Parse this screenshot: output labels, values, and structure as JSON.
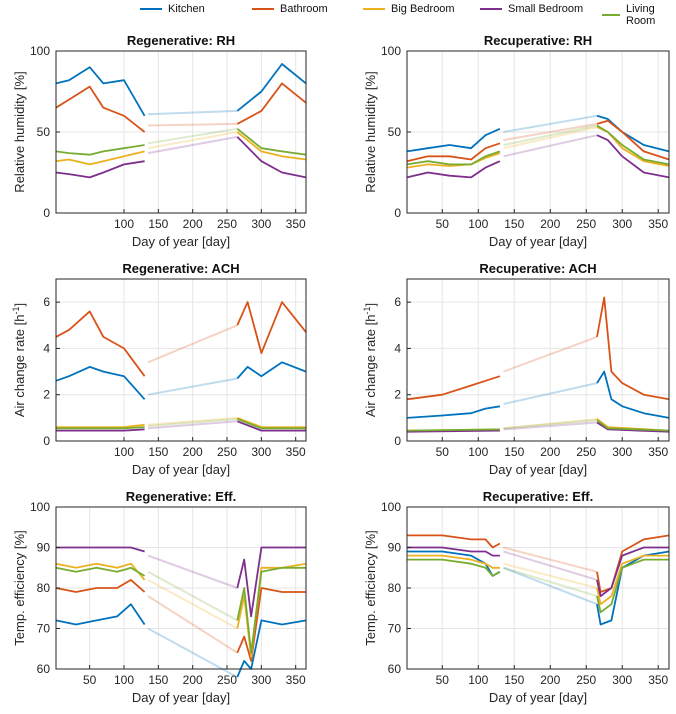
{
  "legend": [
    {
      "name": "Kitchen",
      "color": "#0072BD"
    },
    {
      "name": "Bathroom",
      "color": "#D95319"
    },
    {
      "name": "Big Bedroom",
      "color": "#EDB120"
    },
    {
      "name": "Small Bedroom",
      "color": "#7E2F8E"
    },
    {
      "name": "Living Room",
      "color": "#77AC30"
    }
  ],
  "chart_data": [
    {
      "type": "line",
      "title": "Regenerative: RH",
      "xlabel": "Day of year [day]",
      "ylabel": "Relative humidity [%]",
      "xlim": [
        1,
        365
      ],
      "ylim": [
        0,
        100
      ],
      "xticks": [
        100,
        150,
        200,
        250,
        300,
        350
      ],
      "xticklabels": [
        "100",
        "150",
        "200",
        "250",
        "300",
        "350"
      ],
      "yticks": [
        0,
        50,
        100
      ],
      "grid": true,
      "series": [
        {
          "name": "Kitchen",
          "x": [
            1,
            20,
            50,
            70,
            100,
            130,
            135,
            265,
            300,
            330,
            365
          ],
          "y": [
            80,
            82,
            90,
            80,
            82,
            60,
            61,
            63,
            75,
            92,
            80
          ]
        },
        {
          "name": "Bathroom",
          "x": [
            1,
            20,
            50,
            70,
            100,
            130,
            135,
            265,
            300,
            330,
            365
          ],
          "y": [
            65,
            70,
            78,
            65,
            60,
            50,
            54,
            55,
            63,
            80,
            68
          ]
        },
        {
          "name": "Big Bedroom",
          "x": [
            1,
            20,
            50,
            70,
            100,
            130,
            135,
            265,
            300,
            330,
            365
          ],
          "y": [
            32,
            33,
            30,
            32,
            35,
            38,
            40,
            50,
            38,
            35,
            33
          ]
        },
        {
          "name": "Small Bedroom",
          "x": [
            1,
            20,
            50,
            70,
            100,
            130,
            135,
            265,
            300,
            330,
            365
          ],
          "y": [
            25,
            24,
            22,
            25,
            30,
            32,
            37,
            47,
            32,
            25,
            22
          ]
        },
        {
          "name": "Living Room",
          "x": [
            1,
            20,
            50,
            70,
            100,
            130,
            135,
            265,
            300,
            330,
            365
          ],
          "y": [
            38,
            37,
            36,
            38,
            40,
            42,
            43,
            52,
            40,
            38,
            36
          ]
        }
      ]
    },
    {
      "type": "line",
      "title": "Recuperative: RH",
      "xlabel": "Day of year [day]",
      "ylabel": "Relative humidity [%]",
      "xlim": [
        1,
        365
      ],
      "ylim": [
        0,
        100
      ],
      "xticks": [
        50,
        100,
        150,
        200,
        250,
        300,
        350
      ],
      "xticklabels": [
        "50",
        "100",
        "150",
        "200",
        "250",
        "300",
        "350"
      ],
      "yticks": [
        0,
        50,
        100
      ],
      "grid": true,
      "series": [
        {
          "name": "Kitchen",
          "x": [
            1,
            30,
            60,
            90,
            110,
            130,
            135,
            265,
            280,
            300,
            330,
            365
          ],
          "y": [
            38,
            40,
            42,
            40,
            48,
            52,
            50,
            60,
            58,
            50,
            42,
            38
          ]
        },
        {
          "name": "Bathroom",
          "x": [
            1,
            30,
            60,
            90,
            110,
            130,
            135,
            265,
            280,
            300,
            330,
            365
          ],
          "y": [
            32,
            35,
            35,
            33,
            40,
            43,
            45,
            55,
            57,
            50,
            38,
            33
          ]
        },
        {
          "name": "Big Bedroom",
          "x": [
            1,
            30,
            60,
            90,
            110,
            130,
            135,
            265,
            280,
            300,
            330,
            365
          ],
          "y": [
            28,
            30,
            29,
            30,
            34,
            37,
            40,
            53,
            50,
            40,
            32,
            29
          ]
        },
        {
          "name": "Small Bedroom",
          "x": [
            1,
            30,
            60,
            90,
            110,
            130,
            135,
            265,
            280,
            300,
            330,
            365
          ],
          "y": [
            22,
            25,
            23,
            22,
            28,
            32,
            35,
            48,
            45,
            35,
            25,
            22
          ]
        },
        {
          "name": "Living Room",
          "x": [
            1,
            30,
            60,
            90,
            110,
            130,
            135,
            265,
            280,
            300,
            330,
            365
          ],
          "y": [
            30,
            32,
            30,
            30,
            35,
            38,
            42,
            54,
            50,
            42,
            33,
            30
          ]
        }
      ]
    },
    {
      "type": "line",
      "title": "Regenerative: ACH",
      "xlabel": "Day of year [day]",
      "ylabel": "Air change rate [h",
      "ylabel_sup": "-1",
      "ylabel_end": "]",
      "xlim": [
        1,
        365
      ],
      "ylim": [
        0,
        7
      ],
      "xticks": [
        100,
        150,
        200,
        250,
        300,
        350
      ],
      "xticklabels": [
        "100",
        "150",
        "200",
        "250",
        "300",
        "350"
      ],
      "yticks": [
        0,
        2,
        4,
        6
      ],
      "grid": true,
      "series": [
        {
          "name": "Kitchen",
          "x": [
            1,
            20,
            50,
            70,
            100,
            130,
            135,
            265,
            280,
            300,
            330,
            365
          ],
          "y": [
            2.6,
            2.8,
            3.2,
            3.0,
            2.8,
            1.8,
            2.0,
            2.7,
            3.2,
            2.8,
            3.4,
            3.0
          ]
        },
        {
          "name": "Bathroom",
          "x": [
            1,
            20,
            50,
            70,
            100,
            130,
            135,
            265,
            280,
            300,
            330,
            365
          ],
          "y": [
            4.5,
            4.8,
            5.6,
            4.5,
            4.0,
            2.8,
            3.4,
            5.0,
            6.0,
            3.8,
            6.0,
            4.7
          ]
        },
        {
          "name": "Big Bedroom",
          "x": [
            1,
            50,
            100,
            130,
            135,
            265,
            300,
            365
          ],
          "y": [
            0.6,
            0.6,
            0.6,
            0.7,
            0.7,
            1.0,
            0.6,
            0.6
          ]
        },
        {
          "name": "Small Bedroom",
          "x": [
            1,
            50,
            100,
            130,
            135,
            265,
            300,
            365
          ],
          "y": [
            0.45,
            0.45,
            0.45,
            0.5,
            0.55,
            0.85,
            0.45,
            0.45
          ]
        },
        {
          "name": "Living Room",
          "x": [
            1,
            50,
            100,
            130,
            135,
            265,
            300,
            365
          ],
          "y": [
            0.55,
            0.55,
            0.55,
            0.6,
            0.65,
            0.95,
            0.55,
            0.55
          ]
        }
      ]
    },
    {
      "type": "line",
      "title": "Recuperative: ACH",
      "xlabel": "Day of year [day]",
      "ylabel": "Air change rate [h",
      "ylabel_sup": "-1",
      "ylabel_end": "]",
      "xlim": [
        1,
        365
      ],
      "ylim": [
        0,
        7
      ],
      "xticks": [
        50,
        100,
        150,
        200,
        250,
        300,
        350
      ],
      "xticklabels": [
        "50",
        "100",
        "150",
        "200",
        "250",
        "300",
        "350"
      ],
      "yticks": [
        0,
        2,
        4,
        6
      ],
      "grid": true,
      "series": [
        {
          "name": "Kitchen",
          "x": [
            1,
            50,
            90,
            110,
            130,
            135,
            265,
            275,
            285,
            300,
            330,
            365
          ],
          "y": [
            1.0,
            1.1,
            1.2,
            1.4,
            1.5,
            1.6,
            2.5,
            3.0,
            1.8,
            1.5,
            1.2,
            1.0
          ]
        },
        {
          "name": "Bathroom",
          "x": [
            1,
            50,
            90,
            110,
            130,
            135,
            265,
            275,
            285,
            300,
            330,
            365
          ],
          "y": [
            1.8,
            2.0,
            2.4,
            2.6,
            2.8,
            3.0,
            4.5,
            6.2,
            3.0,
            2.5,
            2.0,
            1.8
          ]
        },
        {
          "name": "Big Bedroom",
          "x": [
            1,
            130,
            135,
            265,
            280,
            365
          ],
          "y": [
            0.45,
            0.5,
            0.55,
            0.95,
            0.6,
            0.45
          ]
        },
        {
          "name": "Small Bedroom",
          "x": [
            1,
            130,
            135,
            265,
            280,
            365
          ],
          "y": [
            0.4,
            0.45,
            0.5,
            0.8,
            0.5,
            0.4
          ]
        },
        {
          "name": "Living Room",
          "x": [
            1,
            130,
            135,
            265,
            280,
            365
          ],
          "y": [
            0.45,
            0.5,
            0.55,
            0.9,
            0.55,
            0.45
          ]
        }
      ]
    },
    {
      "type": "line",
      "title": "Regenerative: Eff.",
      "xlabel": "Day of year [day]",
      "ylabel": "Temp. efficiency [%]",
      "xlim": [
        1,
        365
      ],
      "ylim": [
        60,
        100
      ],
      "xticks": [
        50,
        100,
        150,
        200,
        250,
        300,
        350
      ],
      "xticklabels": [
        "50",
        "100",
        "150",
        "200",
        "250",
        "300",
        "350"
      ],
      "yticks": [
        60,
        70,
        80,
        90,
        100
      ],
      "grid": true,
      "series": [
        {
          "name": "Kitchen",
          "x": [
            1,
            30,
            60,
            90,
            110,
            130,
            135,
            265,
            275,
            285,
            300,
            330,
            365
          ],
          "y": [
            72,
            71,
            72,
            73,
            76,
            71,
            70,
            58,
            62,
            60,
            72,
            71,
            72
          ]
        },
        {
          "name": "Bathroom",
          "x": [
            1,
            30,
            60,
            90,
            110,
            130,
            135,
            265,
            275,
            285,
            300,
            330,
            365
          ],
          "y": [
            80,
            79,
            80,
            80,
            82,
            79,
            78,
            64,
            68,
            62,
            80,
            79,
            79
          ]
        },
        {
          "name": "Big Bedroom",
          "x": [
            1,
            30,
            60,
            90,
            110,
            130,
            135,
            265,
            275,
            285,
            300,
            330,
            365
          ],
          "y": [
            86,
            85,
            86,
            85,
            86,
            82,
            82,
            70,
            78,
            63,
            85,
            85,
            86
          ]
        },
        {
          "name": "Small Bedroom",
          "x": [
            1,
            30,
            60,
            90,
            110,
            130,
            135,
            265,
            275,
            285,
            300,
            330,
            365
          ],
          "y": [
            90,
            90,
            90,
            90,
            90,
            89,
            88,
            80,
            87,
            73,
            90,
            90,
            90
          ]
        },
        {
          "name": "Living Room",
          "x": [
            1,
            30,
            60,
            90,
            110,
            130,
            135,
            265,
            275,
            285,
            300,
            330,
            365
          ],
          "y": [
            85,
            84,
            85,
            84,
            85,
            83,
            84,
            72,
            80,
            64,
            84,
            85,
            85
          ]
        }
      ]
    },
    {
      "type": "line",
      "title": "Recuperative: Eff.",
      "xlabel": "Day of year [day]",
      "ylabel": "Temp. efficiency [%]",
      "xlim": [
        1,
        365
      ],
      "ylim": [
        60,
        100
      ],
      "xticks": [
        50,
        100,
        150,
        200,
        250,
        300,
        350
      ],
      "xticklabels": [
        "50",
        "100",
        "150",
        "200",
        "250",
        "300",
        "350"
      ],
      "yticks": [
        60,
        70,
        80,
        90,
        100
      ],
      "grid": true,
      "series": [
        {
          "name": "Kitchen",
          "x": [
            1,
            50,
            90,
            110,
            120,
            130,
            135,
            265,
            270,
            285,
            300,
            330,
            365
          ],
          "y": [
            89,
            89,
            88,
            86,
            83,
            84,
            85,
            76,
            71,
            72,
            85,
            88,
            89
          ]
        },
        {
          "name": "Bathroom",
          "x": [
            1,
            50,
            90,
            110,
            120,
            130,
            135,
            265,
            270,
            285,
            300,
            330,
            365
          ],
          "y": [
            93,
            93,
            92,
            92,
            90,
            91,
            90,
            84,
            79,
            80,
            89,
            92,
            93
          ]
        },
        {
          "name": "Big Bedroom",
          "x": [
            1,
            50,
            90,
            110,
            120,
            130,
            135,
            265,
            270,
            285,
            300,
            330,
            365
          ],
          "y": [
            88,
            88,
            87,
            86,
            85,
            85,
            86,
            80,
            76,
            78,
            86,
            88,
            88
          ]
        },
        {
          "name": "Small Bedroom",
          "x": [
            1,
            50,
            90,
            110,
            120,
            130,
            135,
            265,
            270,
            285,
            300,
            330,
            365
          ],
          "y": [
            90,
            90,
            89,
            89,
            88,
            88,
            89,
            82,
            78,
            80,
            88,
            90,
            90
          ]
        },
        {
          "name": "Living Room",
          "x": [
            1,
            50,
            90,
            110,
            120,
            130,
            135,
            265,
            270,
            285,
            300,
            330,
            365
          ],
          "y": [
            87,
            87,
            86,
            85,
            83,
            84,
            85,
            78,
            74,
            76,
            85,
            87,
            87
          ]
        }
      ]
    }
  ]
}
